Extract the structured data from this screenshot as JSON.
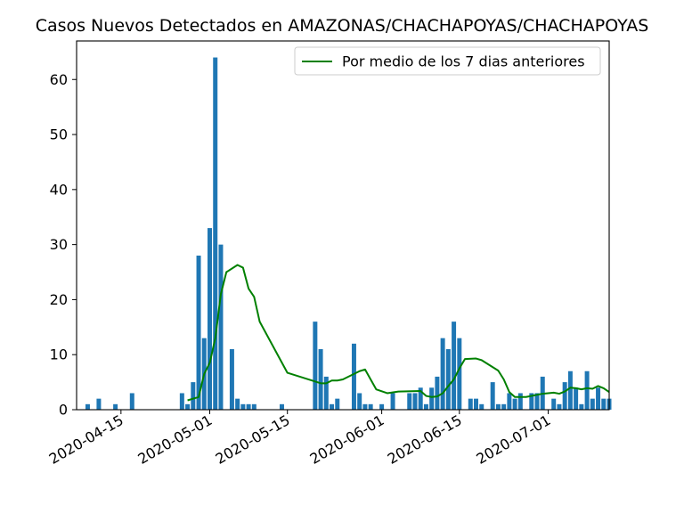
{
  "chart_data": {
    "type": "bar",
    "title": "Casos Nuevos Detectados en AMAZONAS/CHACHAPOYAS/CHACHAPOYAS",
    "xlabel": "",
    "ylabel": "",
    "xlim": [
      "2020-04-07",
      "2020-07-12"
    ],
    "ylim": [
      0,
      67
    ],
    "xticks": [
      "2020-04-15",
      "2020-05-01",
      "2020-05-15",
      "2020-06-01",
      "2020-06-15",
      "2020-07-01"
    ],
    "yticks": [
      0,
      10,
      20,
      30,
      40,
      50,
      60
    ],
    "grid": false,
    "legend_position": "top-right",
    "bar_color": "#1f77b4",
    "line_color": "#008000",
    "series": [
      {
        "kind": "bar",
        "points": [
          [
            "2020-04-09",
            1
          ],
          [
            "2020-04-11",
            2
          ],
          [
            "2020-04-14",
            1
          ],
          [
            "2020-04-17",
            3
          ],
          [
            "2020-04-26",
            3
          ],
          [
            "2020-04-27",
            1
          ],
          [
            "2020-04-28",
            5
          ],
          [
            "2020-04-29",
            28
          ],
          [
            "2020-04-30",
            13
          ],
          [
            "2020-05-01",
            33
          ],
          [
            "2020-05-02",
            64
          ],
          [
            "2020-05-03",
            30
          ],
          [
            "2020-05-05",
            11
          ],
          [
            "2020-05-06",
            2
          ],
          [
            "2020-05-07",
            1
          ],
          [
            "2020-05-08",
            1
          ],
          [
            "2020-05-09",
            1
          ],
          [
            "2020-05-14",
            1
          ],
          [
            "2020-05-20",
            16
          ],
          [
            "2020-05-21",
            11
          ],
          [
            "2020-05-22",
            6
          ],
          [
            "2020-05-23",
            1
          ],
          [
            "2020-05-24",
            2
          ],
          [
            "2020-05-27",
            12
          ],
          [
            "2020-05-28",
            3
          ],
          [
            "2020-05-29",
            1
          ],
          [
            "2020-05-30",
            1
          ],
          [
            "2020-06-01",
            1
          ],
          [
            "2020-06-03",
            3
          ],
          [
            "2020-06-06",
            3
          ],
          [
            "2020-06-07",
            3
          ],
          [
            "2020-06-08",
            4
          ],
          [
            "2020-06-09",
            1
          ],
          [
            "2020-06-10",
            4
          ],
          [
            "2020-06-11",
            6
          ],
          [
            "2020-06-12",
            13
          ],
          [
            "2020-06-13",
            11
          ],
          [
            "2020-06-14",
            16
          ],
          [
            "2020-06-15",
            13
          ],
          [
            "2020-06-17",
            2
          ],
          [
            "2020-06-18",
            2
          ],
          [
            "2020-06-19",
            1
          ],
          [
            "2020-06-21",
            5
          ],
          [
            "2020-06-22",
            1
          ],
          [
            "2020-06-23",
            1
          ],
          [
            "2020-06-24",
            3
          ],
          [
            "2020-06-25",
            2
          ],
          [
            "2020-06-26",
            3
          ],
          [
            "2020-06-28",
            3
          ],
          [
            "2020-06-29",
            3
          ],
          [
            "2020-06-30",
            6
          ],
          [
            "2020-07-02",
            2
          ],
          [
            "2020-07-03",
            1
          ],
          [
            "2020-07-04",
            5
          ],
          [
            "2020-07-05",
            7
          ],
          [
            "2020-07-06",
            4
          ],
          [
            "2020-07-07",
            1
          ],
          [
            "2020-07-08",
            7
          ],
          [
            "2020-07-09",
            2
          ],
          [
            "2020-07-10",
            4
          ],
          [
            "2020-07-11",
            2
          ],
          [
            "2020-07-12",
            2
          ]
        ]
      },
      {
        "kind": "line",
        "name": "Por medio de los 7 dias anteriores",
        "points": [
          [
            "2020-04-27",
            1.7
          ],
          [
            "2020-04-29",
            2.3
          ],
          [
            "2020-04-30",
            6.5
          ],
          [
            "2020-05-01",
            8.5
          ],
          [
            "2020-05-02",
            13.0
          ],
          [
            "2020-05-03",
            21.0
          ],
          [
            "2020-05-04",
            25.0
          ],
          [
            "2020-05-06",
            26.3
          ],
          [
            "2020-05-07",
            25.8
          ],
          [
            "2020-05-08",
            22.0
          ],
          [
            "2020-05-09",
            20.5
          ],
          [
            "2020-05-10",
            16.0
          ],
          [
            "2020-05-15",
            6.7
          ],
          [
            "2020-05-21",
            4.8
          ],
          [
            "2020-05-22",
            4.8
          ],
          [
            "2020-05-23",
            5.3
          ],
          [
            "2020-05-24",
            5.3
          ],
          [
            "2020-05-25",
            5.5
          ],
          [
            "2020-05-28",
            7.0
          ],
          [
            "2020-05-29",
            7.3
          ],
          [
            "2020-05-30",
            5.5
          ],
          [
            "2020-05-31",
            3.7
          ],
          [
            "2020-06-02",
            3.0
          ],
          [
            "2020-06-04",
            3.3
          ],
          [
            "2020-06-08",
            3.4
          ],
          [
            "2020-06-09",
            2.5
          ],
          [
            "2020-06-10",
            2.3
          ],
          [
            "2020-06-11",
            2.4
          ],
          [
            "2020-06-12",
            3.0
          ],
          [
            "2020-06-13",
            4.3
          ],
          [
            "2020-06-14",
            5.5
          ],
          [
            "2020-06-15",
            7.5
          ],
          [
            "2020-06-16",
            9.2
          ],
          [
            "2020-06-18",
            9.3
          ],
          [
            "2020-06-19",
            9.0
          ],
          [
            "2020-06-22",
            7.1
          ],
          [
            "2020-06-23",
            5.5
          ],
          [
            "2020-06-24",
            3.2
          ],
          [
            "2020-06-25",
            2.3
          ],
          [
            "2020-06-27",
            2.3
          ],
          [
            "2020-06-30",
            2.9
          ],
          [
            "2020-07-02",
            3.1
          ],
          [
            "2020-07-03",
            2.9
          ],
          [
            "2020-07-04",
            3.3
          ],
          [
            "2020-07-05",
            4.0
          ],
          [
            "2020-07-06",
            3.9
          ],
          [
            "2020-07-07",
            3.7
          ],
          [
            "2020-07-08",
            3.9
          ],
          [
            "2020-07-09",
            3.8
          ],
          [
            "2020-07-10",
            4.3
          ],
          [
            "2020-07-11",
            3.9
          ],
          [
            "2020-07-12",
            3.2
          ]
        ]
      }
    ]
  }
}
